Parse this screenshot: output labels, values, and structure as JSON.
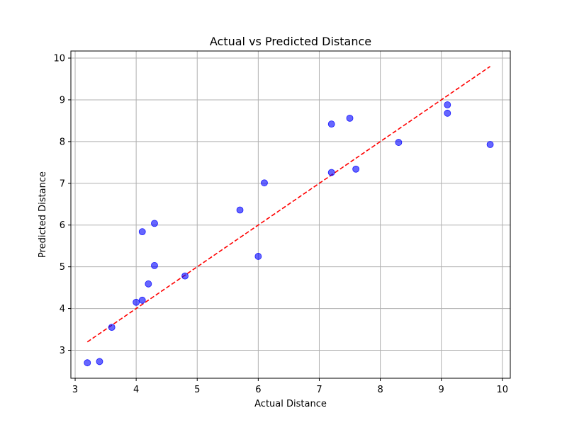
{
  "chart_data": {
    "type": "scatter",
    "title": "Actual vs Predicted Distance",
    "xlabel": "Actual Distance",
    "ylabel": "Predicted Distance",
    "xlim": [
      2.93,
      10.13
    ],
    "ylim": [
      2.33,
      10.17
    ],
    "x_ticks": [
      3,
      4,
      5,
      6,
      7,
      8,
      9,
      10
    ],
    "y_ticks": [
      3,
      4,
      5,
      6,
      7,
      8,
      9,
      10
    ],
    "grid": true,
    "points": [
      {
        "x": 3.2,
        "y": 2.7
      },
      {
        "x": 3.4,
        "y": 2.73
      },
      {
        "x": 3.6,
        "y": 3.55
      },
      {
        "x": 4.0,
        "y": 4.15
      },
      {
        "x": 4.1,
        "y": 4.2
      },
      {
        "x": 4.1,
        "y": 5.84
      },
      {
        "x": 4.2,
        "y": 4.59
      },
      {
        "x": 4.3,
        "y": 5.03
      },
      {
        "x": 4.3,
        "y": 6.04
      },
      {
        "x": 4.8,
        "y": 4.78
      },
      {
        "x": 5.7,
        "y": 6.36
      },
      {
        "x": 6.0,
        "y": 5.25
      },
      {
        "x": 6.1,
        "y": 7.01
      },
      {
        "x": 7.2,
        "y": 8.42
      },
      {
        "x": 7.2,
        "y": 7.26
      },
      {
        "x": 7.5,
        "y": 8.56
      },
      {
        "x": 7.6,
        "y": 7.34
      },
      {
        "x": 8.3,
        "y": 7.98
      },
      {
        "x": 9.1,
        "y": 8.88
      },
      {
        "x": 9.1,
        "y": 8.68
      },
      {
        "x": 9.8,
        "y": 7.93
      }
    ],
    "reference_line": {
      "x": [
        3.2,
        9.8
      ],
      "y": [
        3.2,
        9.8
      ],
      "style": "dashed"
    },
    "colors": {
      "points": "#0000ff",
      "reference_line": "#ff0000",
      "grid": "#b0b0b0"
    }
  }
}
